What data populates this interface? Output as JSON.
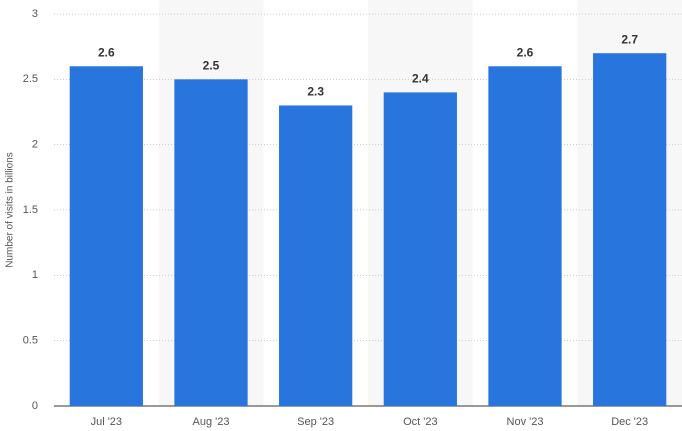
{
  "chart_data": {
    "type": "bar",
    "y_label": "Number of visits in billions",
    "categories": [
      "Jul '23",
      "Aug '23",
      "Sep '23",
      "Oct '23",
      "Nov '23",
      "Dec '23"
    ],
    "values": [
      2.6,
      2.5,
      2.3,
      2.4,
      2.6,
      2.7
    ],
    "color": "#2876dd",
    "ylim": [
      0,
      3
    ],
    "yticks": [
      0,
      0.5,
      1,
      1.5,
      2,
      2.5,
      3
    ],
    "grid": true,
    "value_labels_shown": true
  }
}
